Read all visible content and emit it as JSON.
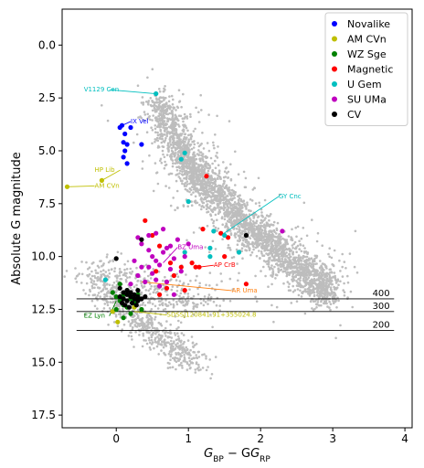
{
  "chart_data": {
    "type": "scatter",
    "xlabel_main": "G",
    "xlabel_sub1": "BP",
    "xlabel_mid": " − G",
    "xlabel_sub2": "RP",
    "ylabel": "Absolute G magnitude",
    "xlim": [
      -0.75,
      4.1
    ],
    "ylim": [
      18.1,
      -1.7
    ],
    "y_inverted": true,
    "xticks": [
      0,
      1,
      2,
      3,
      4
    ],
    "xtick_labels": [
      "0",
      "1",
      "2",
      "3",
      "4"
    ],
    "yticks": [
      0,
      2.5,
      5,
      7.5,
      10,
      12.5,
      15,
      17.5
    ],
    "ytick_labels": [
      "0.0",
      "2.5",
      "5.0",
      "7.5",
      "10.0",
      "12.5",
      "15.0",
      "17.5"
    ],
    "grid": false,
    "legend_position": "top-right",
    "background_color": "#bdbdbd",
    "background_population_description_free": true,
    "background_sequence": {
      "main_sequence": [
        [
          0.55,
          2.6
        ],
        [
          0.8,
          4.3
        ],
        [
          1.0,
          5.6
        ],
        [
          1.2,
          6.5
        ],
        [
          1.5,
          7.5
        ],
        [
          1.8,
          8.5
        ],
        [
          2.1,
          9.4
        ],
        [
          2.4,
          10.2
        ],
        [
          2.7,
          11.0
        ],
        [
          3.0,
          11.8
        ]
      ],
      "white_dwarf": [
        [
          -0.3,
          10.9
        ],
        [
          0.0,
          12.0
        ],
        [
          0.3,
          13.0
        ],
        [
          0.6,
          13.8
        ],
        [
          0.9,
          14.5
        ],
        [
          1.1,
          15.1
        ]
      ]
    },
    "distance_lines": [
      {
        "label": "400",
        "y": 12.0
      },
      {
        "label": "300",
        "y": 12.6
      },
      {
        "label": "200",
        "y": 13.5
      }
    ],
    "series": [
      {
        "name": "Novalike",
        "color": "#0000ff",
        "points": [
          [
            0.05,
            3.9
          ],
          [
            0.08,
            3.8
          ],
          [
            0.12,
            4.2
          ],
          [
            0.2,
            3.9
          ],
          [
            0.1,
            4.6
          ],
          [
            0.15,
            4.7
          ],
          [
            0.35,
            4.7
          ],
          [
            0.12,
            5.0
          ],
          [
            0.1,
            5.3
          ],
          [
            0.15,
            5.6
          ]
        ]
      },
      {
        "name": "AM CVn",
        "color": "#bfbf00",
        "points": [
          [
            -0.68,
            6.7
          ],
          [
            -0.2,
            6.4
          ],
          [
            0.02,
            13.1
          ],
          [
            -0.05,
            12.6
          ],
          [
            0.25,
            12.4
          ]
        ]
      },
      {
        "name": "WZ Sge",
        "color": "#008000",
        "points": [
          [
            -0.05,
            11.7
          ],
          [
            0.0,
            11.9
          ],
          [
            0.05,
            12.1
          ],
          [
            0.1,
            11.8
          ],
          [
            0.15,
            12.4
          ],
          [
            0.2,
            12.7
          ],
          [
            0.1,
            12.9
          ],
          [
            0.25,
            12.2
          ],
          [
            0.0,
            12.5
          ],
          [
            0.3,
            11.8
          ],
          [
            0.05,
            11.3
          ],
          [
            0.2,
            12.0
          ],
          [
            0.1,
            12.3
          ],
          [
            0.35,
            12.5
          ],
          [
            0.15,
            11.6
          ]
        ]
      },
      {
        "name": "Magnetic",
        "color": "#ff0000",
        "points": [
          [
            0.4,
            8.3
          ],
          [
            0.5,
            9.0
          ],
          [
            0.6,
            9.5
          ],
          [
            0.75,
            10.3
          ],
          [
            0.8,
            10.9
          ],
          [
            0.9,
            10.5
          ],
          [
            1.05,
            10.3
          ],
          [
            1.1,
            10.5
          ],
          [
            1.15,
            10.5
          ],
          [
            1.25,
            6.2
          ],
          [
            1.2,
            8.7
          ],
          [
            1.45,
            8.9
          ],
          [
            1.55,
            9.1
          ],
          [
            1.5,
            10.0
          ],
          [
            1.8,
            11.3
          ],
          [
            0.7,
            11.5
          ],
          [
            0.6,
            11.8
          ],
          [
            0.55,
            10.7
          ],
          [
            0.95,
            11.6
          ]
        ]
      },
      {
        "name": "U Gem",
        "color": "#00bfbf",
        "points": [
          [
            0.55,
            2.3
          ],
          [
            0.95,
            5.1
          ],
          [
            0.9,
            5.4
          ],
          [
            1.0,
            7.4
          ],
          [
            1.35,
            8.8
          ],
          [
            1.5,
            9.0
          ],
          [
            1.3,
            9.6
          ],
          [
            1.7,
            9.8
          ],
          [
            1.3,
            10.0
          ],
          [
            0.95,
            9.8
          ],
          [
            -0.15,
            11.1
          ]
        ]
      },
      {
        "name": "SU UMa",
        "color": "#bf00bf",
        "points": [
          [
            0.3,
            9.1
          ],
          [
            0.35,
            9.4
          ],
          [
            0.45,
            9.7
          ],
          [
            0.5,
            10.0
          ],
          [
            0.55,
            10.2
          ],
          [
            0.6,
            10.4
          ],
          [
            0.65,
            9.8
          ],
          [
            0.7,
            9.6
          ],
          [
            0.75,
            9.5
          ],
          [
            0.8,
            10.1
          ],
          [
            0.85,
            9.2
          ],
          [
            0.45,
            10.5
          ],
          [
            0.5,
            10.8
          ],
          [
            0.55,
            11.1
          ],
          [
            0.4,
            11.2
          ],
          [
            0.35,
            10.5
          ],
          [
            0.25,
            10.2
          ],
          [
            0.6,
            11.4
          ],
          [
            0.7,
            11.2
          ],
          [
            0.9,
            10.7
          ],
          [
            0.95,
            10.0
          ],
          [
            0.65,
            8.7
          ],
          [
            0.55,
            8.9
          ],
          [
            0.45,
            9.0
          ],
          [
            1.0,
            9.4
          ],
          [
            2.3,
            8.8
          ],
          [
            0.8,
            11.8
          ],
          [
            0.3,
            10.9
          ],
          [
            0.2,
            11.3
          ],
          [
            0.75,
            10.6
          ]
        ]
      },
      {
        "name": "CV",
        "color": "#000000",
        "points": [
          [
            0.0,
            10.1
          ],
          [
            0.35,
            9.2
          ],
          [
            1.8,
            9.0
          ],
          [
            0.05,
            11.5
          ],
          [
            0.1,
            11.7
          ],
          [
            0.15,
            11.8
          ],
          [
            0.2,
            11.9
          ],
          [
            0.25,
            12.0
          ],
          [
            0.3,
            12.1
          ],
          [
            0.1,
            12.0
          ],
          [
            0.15,
            12.1
          ],
          [
            0.2,
            11.7
          ],
          [
            0.25,
            11.8
          ],
          [
            0.3,
            11.9
          ],
          [
            0.05,
            11.9
          ],
          [
            0.35,
            12.0
          ],
          [
            0.12,
            12.3
          ],
          [
            0.18,
            12.4
          ],
          [
            0.22,
            12.2
          ],
          [
            0.28,
            12.3
          ],
          [
            0.08,
            12.2
          ],
          [
            0.4,
            11.9
          ],
          [
            0.15,
            11.6
          ],
          [
            0.3,
            11.6
          ]
        ]
      }
    ],
    "annotations": [
      {
        "text": "V1129 Cen",
        "color": "#00bfbf",
        "label_x": -0.45,
        "label_y": 2.2,
        "target_x": 0.55,
        "target_y": 2.3
      },
      {
        "text": "IX Vel",
        "color": "#0000ff",
        "label_x": 0.2,
        "label_y": 3.7,
        "target_x": 0.08,
        "target_y": 3.8
      },
      {
        "text": "HP Lib",
        "color": "#bfbf00",
        "label_x": -0.3,
        "label_y": 6.0,
        "target_x": -0.2,
        "target_y": 6.4
      },
      {
        "text": "AM CVn",
        "color": "#bfbf00",
        "label_x": -0.3,
        "label_y": 6.75,
        "target_x": -0.68,
        "target_y": 6.7
      },
      {
        "text": "GY Cnc",
        "color": "#00bfbf",
        "label_x": 2.25,
        "label_y": 7.25,
        "target_x": 1.45,
        "target_y": 9.0
      },
      {
        "text": "BZ Uma",
        "color": "#bf00bf",
        "label_x": 0.85,
        "label_y": 9.65,
        "target_x": 0.65,
        "target_y": 10.3
      },
      {
        "text": "AP CrB",
        "color": "#ff0000",
        "label_x": 1.35,
        "label_y": 10.5,
        "target_x": 1.15,
        "target_y": 10.5
      },
      {
        "text": "AR Uma",
        "color": "#ff7f0e",
        "label_x": 1.6,
        "label_y": 11.7,
        "target_x": 0.35,
        "target_y": 11.2
      },
      {
        "text": "EZ Lyn",
        "color": "#008000",
        "label_x": -0.45,
        "label_y": 12.9,
        "target_x": 0.0,
        "target_y": 12.1
      },
      {
        "text": "SDSSJ120841.91+355024.8",
        "color": "#bfbf00",
        "label_x": 0.7,
        "label_y": 12.85,
        "target_x": 0.25,
        "target_y": 12.6
      }
    ]
  }
}
